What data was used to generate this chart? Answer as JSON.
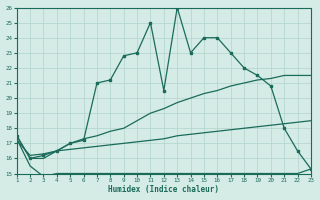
{
  "xlabel": "Humidex (Indice chaleur)",
  "xlim": [
    1,
    23
  ],
  "ylim": [
    15,
    26
  ],
  "xticks": [
    1,
    2,
    3,
    4,
    5,
    6,
    7,
    8,
    9,
    10,
    11,
    12,
    13,
    14,
    15,
    16,
    17,
    18,
    19,
    20,
    21,
    22,
    23
  ],
  "yticks": [
    15,
    16,
    17,
    18,
    19,
    20,
    21,
    22,
    23,
    24,
    25,
    26
  ],
  "bg_color": "#d5ebe6",
  "line_color": "#1a6b5a",
  "grid_color": "#afd4cc",
  "line1_x": [
    1,
    2,
    3,
    4,
    5,
    6,
    7,
    8,
    9,
    10,
    11,
    12,
    13,
    14,
    15,
    16,
    17,
    18,
    19,
    20,
    21,
    22,
    23
  ],
  "line1_y": [
    17.5,
    16.0,
    16.2,
    16.5,
    17.0,
    17.2,
    21.0,
    21.2,
    22.8,
    23.0,
    25.0,
    20.5,
    26.0,
    23.0,
    24.0,
    24.0,
    23.0,
    22.0,
    21.5,
    20.8,
    18.0,
    16.5,
    15.3
  ],
  "line2_x": [
    1,
    2,
    3,
    4,
    5,
    6,
    7,
    8,
    9,
    10,
    11,
    12,
    13,
    14,
    15,
    16,
    17,
    18,
    19,
    20,
    21,
    23
  ],
  "line2_y": [
    17.5,
    16.0,
    16.0,
    16.5,
    17.0,
    17.3,
    17.5,
    17.8,
    18.0,
    18.5,
    19.0,
    19.3,
    19.7,
    20.0,
    20.3,
    20.5,
    20.8,
    21.0,
    21.2,
    21.3,
    21.5,
    21.5
  ],
  "line3_x": [
    1,
    2,
    3,
    4,
    5,
    6,
    7,
    8,
    9,
    10,
    11,
    12,
    13,
    14,
    15,
    16,
    17,
    18,
    19,
    20,
    21,
    23
  ],
  "line3_y": [
    17.2,
    16.2,
    16.3,
    16.5,
    16.6,
    16.7,
    16.8,
    16.9,
    17.0,
    17.1,
    17.2,
    17.3,
    17.5,
    17.6,
    17.7,
    17.8,
    17.9,
    18.0,
    18.1,
    18.2,
    18.3,
    18.5
  ],
  "line4_x": [
    1,
    2,
    3,
    4,
    9,
    14,
    19,
    22,
    23
  ],
  "line4_y": [
    17.3,
    15.5,
    14.8,
    15.0,
    15.0,
    15.0,
    15.0,
    15.0,
    15.3
  ],
  "marker_x": [
    1,
    2,
    3,
    4,
    5,
    6,
    7,
    8,
    9,
    10,
    11,
    12,
    13,
    14,
    15,
    16,
    17,
    18,
    19,
    20,
    21,
    22,
    23
  ],
  "marker_y": [
    17.5,
    16.0,
    16.2,
    16.5,
    17.0,
    17.2,
    21.0,
    21.2,
    22.8,
    23.0,
    25.0,
    20.5,
    26.0,
    23.0,
    24.0,
    24.0,
    23.0,
    22.0,
    21.5,
    20.8,
    18.0,
    16.5,
    15.3
  ]
}
